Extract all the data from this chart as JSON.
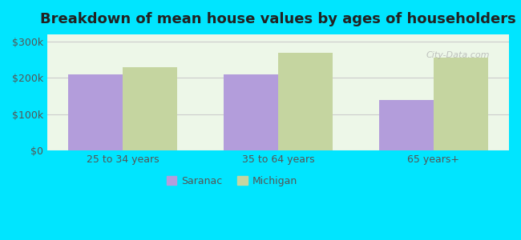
{
  "title": "Breakdown of mean house values by ages of householders",
  "categories": [
    "25 to 34 years",
    "35 to 64 years",
    "65 years+"
  ],
  "saranac_values": [
    210000,
    210000,
    140000
  ],
  "michigan_values": [
    230000,
    270000,
    255000
  ],
  "saranac_color": "#b39ddb",
  "michigan_color": "#c5d5a0",
  "ylim": [
    0,
    320000
  ],
  "yticks": [
    0,
    100000,
    200000,
    300000
  ],
  "ytick_labels": [
    "$0",
    "$100k",
    "$200k",
    "$300k"
  ],
  "legend_labels": [
    "Saranac",
    "Michigan"
  ],
  "background_color": "#00e5ff",
  "plot_bg_color_top": "#e8f5e9",
  "plot_bg_color_bottom": "#f5ffe8",
  "bar_width": 0.35,
  "title_fontsize": 13,
  "tick_fontsize": 9,
  "legend_fontsize": 9
}
